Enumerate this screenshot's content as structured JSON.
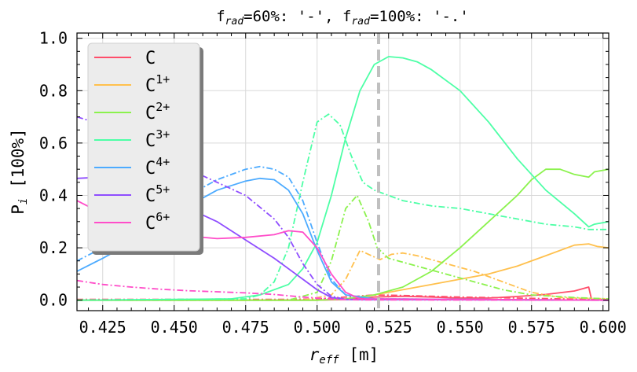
{
  "chart_data": {
    "type": "line",
    "title_parts": {
      "a_pre": "f",
      "a_sub": "rad",
      "a_post": "=60%: '-', ",
      "b_pre": "f",
      "b_sub": "rad",
      "b_post": "=100%: '-.'"
    },
    "xlabel_parts": {
      "pre": "r",
      "sub": "eff",
      "post": " [m]"
    },
    "ylabel_parts": {
      "pre": "P",
      "sub": "i",
      "post": " [100%]"
    },
    "xlim": [
      0.416,
      0.602
    ],
    "ylim": [
      -0.04,
      1.02
    ],
    "xticks": [
      0.425,
      0.45,
      0.475,
      0.5,
      0.525,
      0.55,
      0.575,
      0.6
    ],
    "xtick_labels": [
      "0.425",
      "0.450",
      "0.475",
      "0.500",
      "0.525",
      "0.550",
      "0.575",
      "0.600"
    ],
    "yticks": [
      0.0,
      0.2,
      0.4,
      0.6,
      0.8,
      1.0
    ],
    "ytick_labels": [
      "0.0",
      "0.2",
      "0.4",
      "0.6",
      "0.8",
      "1.0"
    ],
    "grid": true,
    "legend_position": "upper-left",
    "vline": {
      "x": 0.5215,
      "color": "#c0c0c0",
      "style": "dashed"
    },
    "series": [
      {
        "name": "C",
        "sup": "",
        "color": "#ff4d6a",
        "solid": [
          [
            0.416,
            0
          ],
          [
            0.5,
            0
          ],
          [
            0.51,
            0.003
          ],
          [
            0.52,
            0.012
          ],
          [
            0.53,
            0.015
          ],
          [
            0.54,
            0.012
          ],
          [
            0.55,
            0.008
          ],
          [
            0.56,
            0.008
          ],
          [
            0.57,
            0.014
          ],
          [
            0.58,
            0.022
          ],
          [
            0.59,
            0.035
          ],
          [
            0.595,
            0.05
          ],
          [
            0.596,
            0.002
          ],
          [
            0.602,
            0.002
          ]
        ],
        "dashdot": [
          [
            0.416,
            0.003
          ],
          [
            0.49,
            0.003
          ],
          [
            0.5,
            0.005
          ],
          [
            0.51,
            0.012
          ],
          [
            0.52,
            0.02
          ],
          [
            0.53,
            0.018
          ],
          [
            0.55,
            0.012
          ],
          [
            0.57,
            0.008
          ],
          [
            0.59,
            0.004
          ],
          [
            0.602,
            0.002
          ]
        ]
      },
      {
        "name": "C",
        "sup": "1+",
        "color": "#ffc04d",
        "solid": [
          [
            0.416,
            0
          ],
          [
            0.5,
            0
          ],
          [
            0.51,
            0.005
          ],
          [
            0.52,
            0.02
          ],
          [
            0.53,
            0.04
          ],
          [
            0.54,
            0.06
          ],
          [
            0.55,
            0.08
          ],
          [
            0.56,
            0.1
          ],
          [
            0.57,
            0.13
          ],
          [
            0.58,
            0.17
          ],
          [
            0.59,
            0.21
          ],
          [
            0.595,
            0.215
          ],
          [
            0.598,
            0.205
          ],
          [
            0.602,
            0.2
          ]
        ],
        "dashdot": [
          [
            0.416,
            0
          ],
          [
            0.495,
            0
          ],
          [
            0.505,
            0.02
          ],
          [
            0.51,
            0.08
          ],
          [
            0.515,
            0.19
          ],
          [
            0.519,
            0.17
          ],
          [
            0.522,
            0.155
          ],
          [
            0.526,
            0.175
          ],
          [
            0.53,
            0.18
          ],
          [
            0.535,
            0.17
          ],
          [
            0.545,
            0.14
          ],
          [
            0.555,
            0.11
          ],
          [
            0.565,
            0.07
          ],
          [
            0.575,
            0.03
          ],
          [
            0.585,
            0.01
          ],
          [
            0.602,
            0.005
          ]
        ]
      },
      {
        "name": "C",
        "sup": "2+",
        "color": "#8bf24d",
        "solid": [
          [
            0.416,
            0
          ],
          [
            0.5,
            0
          ],
          [
            0.51,
            0.005
          ],
          [
            0.52,
            0.02
          ],
          [
            0.53,
            0.05
          ],
          [
            0.54,
            0.11
          ],
          [
            0.55,
            0.2
          ],
          [
            0.56,
            0.3
          ],
          [
            0.57,
            0.4
          ],
          [
            0.575,
            0.46
          ],
          [
            0.58,
            0.5
          ],
          [
            0.585,
            0.5
          ],
          [
            0.59,
            0.48
          ],
          [
            0.595,
            0.47
          ],
          [
            0.597,
            0.49
          ],
          [
            0.602,
            0.5
          ]
        ],
        "dashdot": [
          [
            0.416,
            0
          ],
          [
            0.49,
            0
          ],
          [
            0.5,
            0.03
          ],
          [
            0.505,
            0.15
          ],
          [
            0.51,
            0.35
          ],
          [
            0.514,
            0.4
          ],
          [
            0.518,
            0.3
          ],
          [
            0.521,
            0.2
          ],
          [
            0.525,
            0.16
          ],
          [
            0.535,
            0.13
          ],
          [
            0.545,
            0.1
          ],
          [
            0.555,
            0.07
          ],
          [
            0.565,
            0.04
          ],
          [
            0.575,
            0.02
          ],
          [
            0.59,
            0.01
          ],
          [
            0.602,
            0.005
          ]
        ]
      },
      {
        "name": "C",
        "sup": "3+",
        "color": "#4dffa6",
        "solid": [
          [
            0.416,
            0
          ],
          [
            0.47,
            0.005
          ],
          [
            0.48,
            0.02
          ],
          [
            0.49,
            0.06
          ],
          [
            0.495,
            0.12
          ],
          [
            0.5,
            0.22
          ],
          [
            0.505,
            0.4
          ],
          [
            0.51,
            0.62
          ],
          [
            0.515,
            0.8
          ],
          [
            0.52,
            0.9
          ],
          [
            0.525,
            0.93
          ],
          [
            0.53,
            0.925
          ],
          [
            0.535,
            0.91
          ],
          [
            0.54,
            0.88
          ],
          [
            0.55,
            0.8
          ],
          [
            0.56,
            0.68
          ],
          [
            0.57,
            0.54
          ],
          [
            0.58,
            0.42
          ],
          [
            0.59,
            0.33
          ],
          [
            0.595,
            0.28
          ],
          [
            0.597,
            0.29
          ],
          [
            0.602,
            0.3
          ]
        ],
        "dashdot": [
          [
            0.416,
            0
          ],
          [
            0.475,
            0.005
          ],
          [
            0.48,
            0.02
          ],
          [
            0.485,
            0.07
          ],
          [
            0.49,
            0.2
          ],
          [
            0.495,
            0.45
          ],
          [
            0.5,
            0.68
          ],
          [
            0.504,
            0.71
          ],
          [
            0.508,
            0.67
          ],
          [
            0.512,
            0.55
          ],
          [
            0.516,
            0.45
          ],
          [
            0.52,
            0.42
          ],
          [
            0.525,
            0.4
          ],
          [
            0.53,
            0.38
          ],
          [
            0.54,
            0.36
          ],
          [
            0.55,
            0.35
          ],
          [
            0.56,
            0.33
          ],
          [
            0.57,
            0.31
          ],
          [
            0.58,
            0.29
          ],
          [
            0.59,
            0.28
          ],
          [
            0.595,
            0.27
          ],
          [
            0.602,
            0.27
          ]
        ]
      },
      {
        "name": "C",
        "sup": "4+",
        "color": "#4dabff",
        "solid": [
          [
            0.416,
            0.11
          ],
          [
            0.425,
            0.16
          ],
          [
            0.435,
            0.22
          ],
          [
            0.445,
            0.29
          ],
          [
            0.455,
            0.36
          ],
          [
            0.465,
            0.42
          ],
          [
            0.475,
            0.455
          ],
          [
            0.48,
            0.465
          ],
          [
            0.485,
            0.46
          ],
          [
            0.49,
            0.42
          ],
          [
            0.495,
            0.33
          ],
          [
            0.5,
            0.19
          ],
          [
            0.505,
            0.07
          ],
          [
            0.51,
            0.02
          ],
          [
            0.52,
            0.005
          ],
          [
            0.602,
            0
          ]
        ],
        "dashdot": [
          [
            0.416,
            0.15
          ],
          [
            0.425,
            0.2
          ],
          [
            0.435,
            0.26
          ],
          [
            0.445,
            0.33
          ],
          [
            0.455,
            0.4
          ],
          [
            0.465,
            0.46
          ],
          [
            0.475,
            0.5
          ],
          [
            0.48,
            0.51
          ],
          [
            0.485,
            0.5
          ],
          [
            0.49,
            0.47
          ],
          [
            0.495,
            0.38
          ],
          [
            0.5,
            0.22
          ],
          [
            0.505,
            0.08
          ],
          [
            0.51,
            0.02
          ],
          [
            0.52,
            0.005
          ],
          [
            0.602,
            0
          ]
        ]
      },
      {
        "name": "C",
        "sup": "5+",
        "color": "#8f4dff",
        "solid": [
          [
            0.416,
            0.465
          ],
          [
            0.425,
            0.47
          ],
          [
            0.435,
            0.44
          ],
          [
            0.445,
            0.4
          ],
          [
            0.455,
            0.35
          ],
          [
            0.465,
            0.3
          ],
          [
            0.475,
            0.23
          ],
          [
            0.485,
            0.16
          ],
          [
            0.495,
            0.08
          ],
          [
            0.5,
            0.04
          ],
          [
            0.505,
            0.01
          ],
          [
            0.51,
            0.003
          ],
          [
            0.602,
            0
          ]
        ],
        "dashdot": [
          [
            0.416,
            0.7
          ],
          [
            0.425,
            0.67
          ],
          [
            0.435,
            0.62
          ],
          [
            0.445,
            0.56
          ],
          [
            0.455,
            0.5
          ],
          [
            0.465,
            0.45
          ],
          [
            0.475,
            0.4
          ],
          [
            0.485,
            0.31
          ],
          [
            0.49,
            0.24
          ],
          [
            0.495,
            0.14
          ],
          [
            0.5,
            0.06
          ],
          [
            0.505,
            0.015
          ],
          [
            0.51,
            0.003
          ],
          [
            0.602,
            0
          ]
        ]
      },
      {
        "name": "C",
        "sup": "6+",
        "color": "#ff4dc9",
        "solid": [
          [
            0.416,
            0.38
          ],
          [
            0.425,
            0.33
          ],
          [
            0.435,
            0.29
          ],
          [
            0.445,
            0.26
          ],
          [
            0.455,
            0.245
          ],
          [
            0.465,
            0.235
          ],
          [
            0.475,
            0.24
          ],
          [
            0.485,
            0.25
          ],
          [
            0.49,
            0.265
          ],
          [
            0.495,
            0.26
          ],
          [
            0.5,
            0.2
          ],
          [
            0.505,
            0.1
          ],
          [
            0.51,
            0.03
          ],
          [
            0.515,
            0.005
          ],
          [
            0.602,
            0
          ]
        ],
        "dashdot": [
          [
            0.416,
            0.075
          ],
          [
            0.425,
            0.06
          ],
          [
            0.435,
            0.05
          ],
          [
            0.445,
            0.042
          ],
          [
            0.455,
            0.036
          ],
          [
            0.465,
            0.032
          ],
          [
            0.475,
            0.028
          ],
          [
            0.485,
            0.022
          ],
          [
            0.495,
            0.012
          ],
          [
            0.505,
            0.004
          ],
          [
            0.515,
            0.001
          ],
          [
            0.602,
            0
          ]
        ]
      }
    ]
  }
}
